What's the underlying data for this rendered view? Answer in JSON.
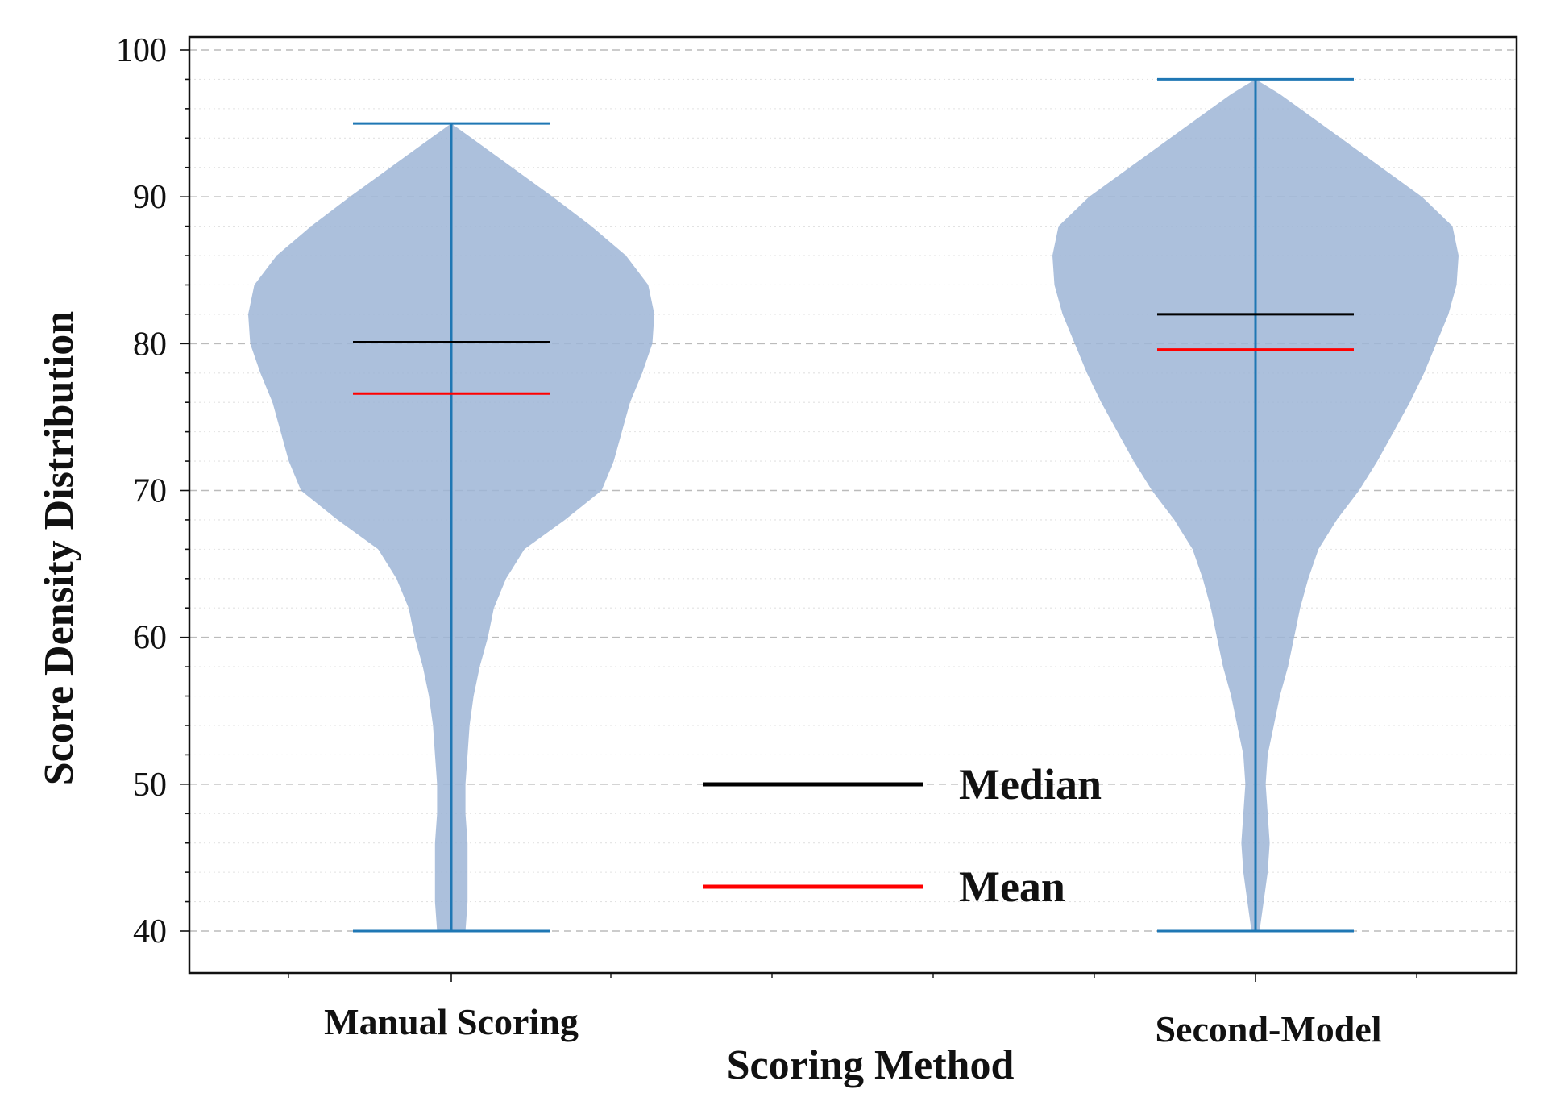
{
  "chart_data": {
    "type": "violin",
    "xlabel": "Scoring Method",
    "ylabel": "Score Density Distribution",
    "ylim": [
      40,
      100
    ],
    "yticks": [
      "40",
      "50",
      "60",
      "70",
      "80",
      "90",
      "100"
    ],
    "grid": true,
    "legend_position": "center-bottom",
    "categories": [
      "Manual Scoring",
      "Second-Model"
    ],
    "series": [
      {
        "category": "Manual Scoring",
        "min": 40,
        "max": 95,
        "median": 80.1,
        "mean": 76.6,
        "density_profile": [
          [
            40,
            0.07
          ],
          [
            42,
            0.08
          ],
          [
            44,
            0.08
          ],
          [
            46,
            0.08
          ],
          [
            48,
            0.07
          ],
          [
            50,
            0.07
          ],
          [
            52,
            0.08
          ],
          [
            54,
            0.09
          ],
          [
            56,
            0.11
          ],
          [
            58,
            0.14
          ],
          [
            60,
            0.18
          ],
          [
            62,
            0.21
          ],
          [
            64,
            0.27
          ],
          [
            66,
            0.36
          ],
          [
            68,
            0.56
          ],
          [
            70,
            0.74
          ],
          [
            72,
            0.8
          ],
          [
            74,
            0.84
          ],
          [
            76,
            0.88
          ],
          [
            78,
            0.94
          ],
          [
            80,
            0.99
          ],
          [
            82,
            1.0
          ],
          [
            84,
            0.97
          ],
          [
            86,
            0.86
          ],
          [
            88,
            0.69
          ],
          [
            90,
            0.5
          ],
          [
            92,
            0.3
          ],
          [
            94,
            0.1
          ],
          [
            95,
            0.0
          ]
        ]
      },
      {
        "category": "Second-Model",
        "min": 40,
        "max": 98,
        "median": 82.0,
        "mean": 79.6,
        "density_profile": [
          [
            40,
            0.02
          ],
          [
            42,
            0.04
          ],
          [
            44,
            0.06
          ],
          [
            46,
            0.07
          ],
          [
            48,
            0.06
          ],
          [
            50,
            0.05
          ],
          [
            52,
            0.06
          ],
          [
            54,
            0.09
          ],
          [
            56,
            0.12
          ],
          [
            58,
            0.16
          ],
          [
            60,
            0.19
          ],
          [
            62,
            0.22
          ],
          [
            64,
            0.26
          ],
          [
            66,
            0.31
          ],
          [
            68,
            0.4
          ],
          [
            70,
            0.51
          ],
          [
            72,
            0.6
          ],
          [
            74,
            0.68
          ],
          [
            76,
            0.76
          ],
          [
            78,
            0.83
          ],
          [
            80,
            0.89
          ],
          [
            82,
            0.95
          ],
          [
            84,
            0.99
          ],
          [
            86,
            1.0
          ],
          [
            88,
            0.97
          ],
          [
            90,
            0.82
          ],
          [
            92,
            0.62
          ],
          [
            94,
            0.42
          ],
          [
            96,
            0.22
          ],
          [
            97,
            0.12
          ],
          [
            98,
            0.0
          ]
        ]
      }
    ],
    "legend": [
      {
        "label": "Median",
        "color": "#000000"
      },
      {
        "label": "Mean",
        "color": "#ff0000"
      }
    ],
    "colors": {
      "violin_fill": "#9db5d6",
      "whisker": "#1f77b4",
      "median": "#000000",
      "mean": "#ff0000",
      "grid": "#bbbbbb"
    }
  }
}
